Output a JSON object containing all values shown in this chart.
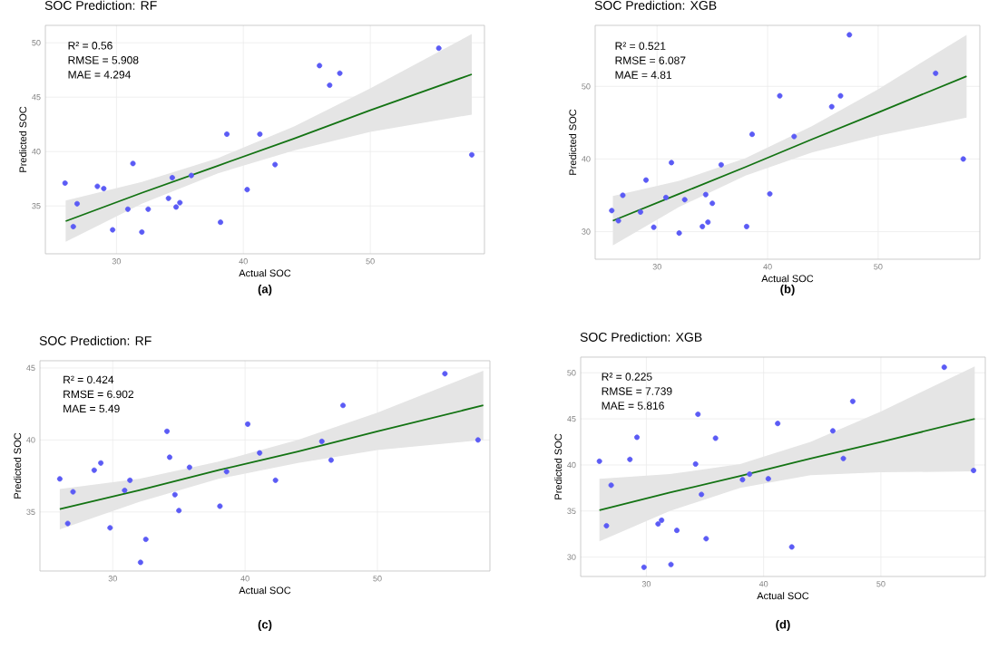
{
  "chart_data": [
    {
      "type": "scatter",
      "title": "SOC Prediction: RF",
      "xlabel": "Actual SOC",
      "ylabel": "Predicted SOC",
      "xlim": [
        24.4,
        59
      ],
      "ylim": [
        30.6,
        51.6
      ],
      "xticks": [
        30,
        40,
        50
      ],
      "yticks": [
        35,
        40,
        45,
        50
      ],
      "grid": true,
      "marker": "circle",
      "annotations": [
        "R² = 0.56",
        "RMSE = 5.908",
        "MAE = 4.294",
        "(a)"
      ],
      "series": [
        {
          "color": "#5b5bf5",
          "x": [
            25.95,
            26.6,
            26.9,
            28.5,
            29.0,
            29.7,
            30.9,
            31.3,
            32.0,
            32.5,
            34.1,
            34.4,
            34.7,
            35.0,
            35.9,
            38.2,
            38.7,
            40.3,
            41.3,
            42.5,
            46.0,
            46.8,
            47.6,
            55.4,
            58.0
          ],
          "values": [
            37.1,
            33.1,
            35.2,
            36.8,
            36.6,
            32.8,
            34.7,
            38.9,
            32.6,
            34.7,
            35.7,
            37.6,
            34.9,
            35.3,
            37.8,
            33.5,
            41.6,
            36.5,
            41.6,
            38.8,
            47.9,
            46.1,
            47.2,
            49.5,
            39.7
          ]
        },
        {
          "type": "line",
          "marker": "none",
          "color": "#137313",
          "x": [
            26,
            32,
            38,
            44,
            50,
            58
          ],
          "values": [
            33.6,
            36.2,
            38.7,
            41.2,
            43.8,
            47.1
          ],
          "lower": [
            31.7,
            35.2,
            38.0,
            40.1,
            41.8,
            43.4
          ],
          "upper": [
            35.5,
            37.2,
            39.4,
            42.3,
            45.8,
            50.8
          ]
        }
      ]
    },
    {
      "type": "scatter",
      "title": "SOC Prediction: XGB",
      "xlabel": "Actual SOC",
      "ylabel": "Predicted SOC",
      "xlim": [
        24.4,
        59.2
      ],
      "ylim": [
        26.2,
        58.4
      ],
      "xticks": [
        30,
        40,
        50
      ],
      "yticks": [
        30,
        40,
        50
      ],
      "grid": true,
      "marker": "circle",
      "annotations": [
        "R² = 0.521",
        "RMSE = 6.087",
        "MAE = 4.81",
        "(b)"
      ],
      "series": [
        {
          "color": "#5b5bf5",
          "x": [
            25.9,
            26.5,
            26.9,
            28.5,
            29.0,
            29.7,
            30.8,
            31.3,
            32.0,
            32.5,
            34.1,
            34.4,
            34.6,
            35.0,
            35.8,
            38.1,
            38.6,
            40.2,
            41.1,
            42.4,
            45.8,
            46.6,
            47.4,
            55.2,
            57.7
          ],
          "values": [
            32.9,
            31.5,
            35.0,
            32.7,
            37.1,
            30.6,
            34.7,
            39.5,
            29.8,
            34.4,
            30.7,
            35.1,
            31.3,
            33.9,
            39.2,
            30.7,
            43.4,
            35.2,
            48.7,
            43.1,
            47.2,
            48.7,
            57.1,
            51.8,
            40.0
          ]
        },
        {
          "type": "line",
          "marker": "none",
          "color": "#137313",
          "x": [
            26,
            32,
            38,
            44,
            50,
            58
          ],
          "values": [
            31.5,
            35.2,
            38.9,
            42.7,
            46.4,
            51.4
          ],
          "lower": [
            28.1,
            33.4,
            37.7,
            40.9,
            43.2,
            45.7
          ],
          "upper": [
            34.9,
            37.0,
            40.1,
            44.5,
            49.6,
            57.1
          ]
        }
      ]
    },
    {
      "type": "scatter",
      "title": "SOC Prediction: RF",
      "xlabel": "Actual SOC",
      "ylabel": "Predicted SOC",
      "xlim": [
        24.5,
        58.5
      ],
      "ylim": [
        30.9,
        45.5
      ],
      "xticks": [
        30,
        40,
        50
      ],
      "yticks": [
        35,
        40,
        45
      ],
      "grid": true,
      "marker": "circle",
      "annotations": [
        "R² = 0.424",
        "RMSE = 6.902",
        "MAE = 5.49",
        "(c)"
      ],
      "series": [
        {
          "color": "#5b5bf5",
          "x": [
            26.0,
            26.6,
            27.0,
            28.6,
            29.1,
            29.8,
            30.9,
            31.3,
            32.1,
            32.5,
            34.1,
            34.3,
            34.7,
            35.0,
            35.8,
            38.1,
            38.6,
            40.2,
            41.1,
            42.3,
            45.8,
            46.5,
            47.4,
            55.1,
            57.6
          ],
          "values": [
            37.3,
            34.2,
            36.4,
            37.9,
            38.4,
            33.9,
            36.5,
            37.2,
            31.5,
            33.1,
            40.6,
            38.8,
            36.2,
            35.1,
            38.1,
            35.4,
            37.8,
            41.1,
            39.1,
            37.2,
            39.9,
            38.6,
            42.4,
            44.6,
            40.0
          ]
        },
        {
          "type": "line",
          "marker": "none",
          "color": "#137313",
          "x": [
            26,
            32,
            38,
            44,
            50,
            58
          ],
          "values": [
            35.2,
            36.5,
            37.9,
            39.2,
            40.6,
            42.4
          ],
          "lower": [
            33.8,
            35.7,
            37.3,
            38.4,
            39.3,
            40.0
          ],
          "upper": [
            36.6,
            37.3,
            38.5,
            40.0,
            41.9,
            44.8
          ]
        }
      ]
    },
    {
      "type": "scatter",
      "title": "SOC Prediction: XGB",
      "xlabel": "Actual SOC",
      "ylabel": "Predicted SOC",
      "xlim": [
        24.4,
        58.9
      ],
      "ylim": [
        27.9,
        51.7
      ],
      "xticks": [
        30,
        40,
        50
      ],
      "yticks": [
        30,
        35,
        40,
        45,
        50
      ],
      "grid": true,
      "marker": "circle",
      "annotations": [
        "R² = 0.225",
        "RMSE = 7.739",
        "MAE = 5.816",
        "(d)"
      ],
      "series": [
        {
          "color": "#5b5bf5",
          "x": [
            26.0,
            26.6,
            27.0,
            28.6,
            29.2,
            29.8,
            31.0,
            31.3,
            32.1,
            32.6,
            34.2,
            34.4,
            34.7,
            35.1,
            35.9,
            38.2,
            38.8,
            40.4,
            41.2,
            42.4,
            45.9,
            46.8,
            47.6,
            55.4,
            57.9
          ],
          "values": [
            40.4,
            33.4,
            37.8,
            40.6,
            43.0,
            28.9,
            33.6,
            34.0,
            29.2,
            32.9,
            40.1,
            45.5,
            36.8,
            32.0,
            42.9,
            38.4,
            39.0,
            38.5,
            44.5,
            31.1,
            43.7,
            40.7,
            46.9,
            50.6,
            39.4
          ]
        },
        {
          "type": "line",
          "marker": "none",
          "color": "#137313",
          "x": [
            26,
            32,
            38,
            44,
            50,
            58
          ],
          "values": [
            35.1,
            37.0,
            38.8,
            40.7,
            42.5,
            45.0
          ],
          "lower": [
            31.7,
            35.0,
            37.5,
            38.9,
            39.2,
            39.3
          ],
          "upper": [
            38.5,
            39.0,
            40.1,
            42.5,
            45.8,
            50.7
          ]
        }
      ]
    }
  ]
}
